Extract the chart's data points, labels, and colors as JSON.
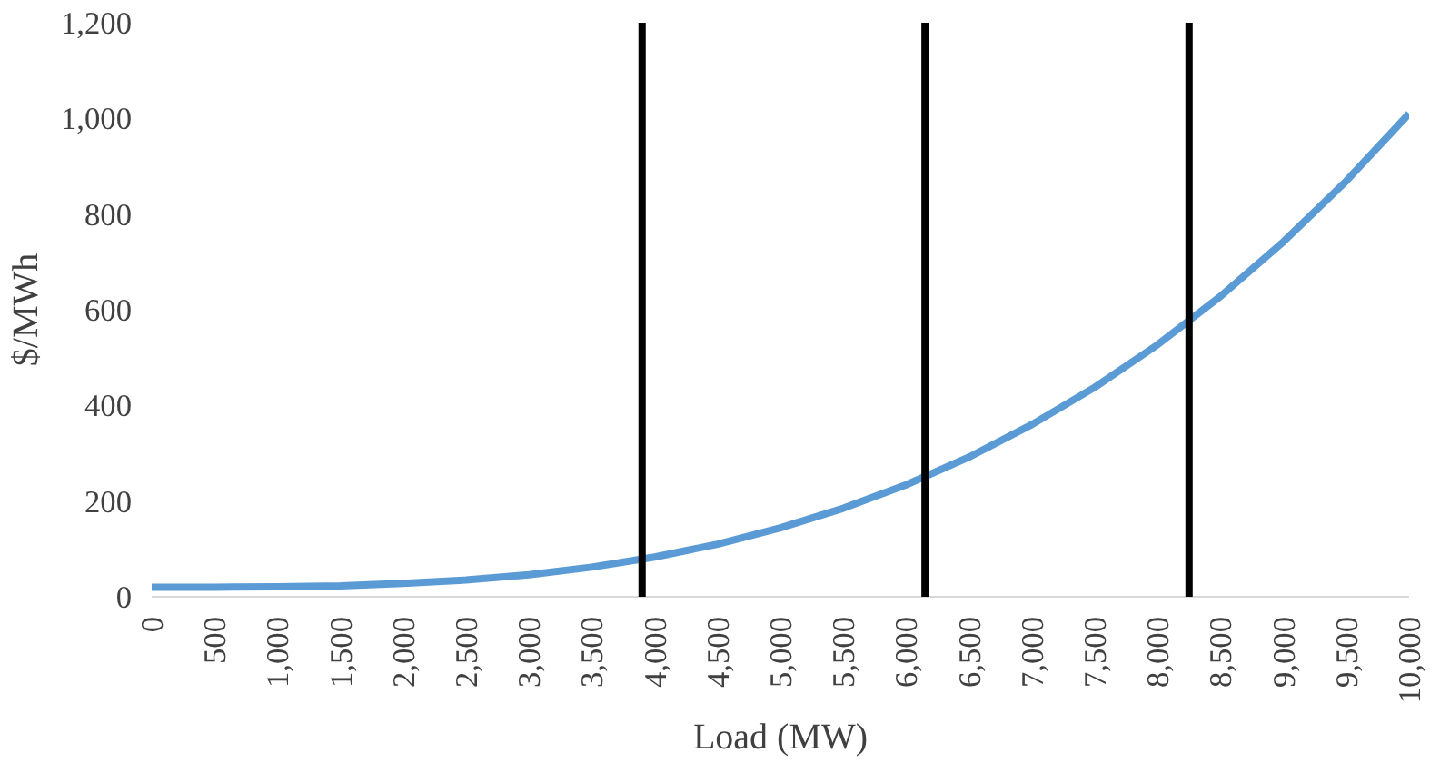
{
  "chart_data": {
    "type": "line",
    "xlabel": "Load (MW)",
    "ylabel": "$/MWh",
    "x": [
      0,
      500,
      1000,
      1500,
      2000,
      2500,
      3000,
      3500,
      4000,
      4500,
      5000,
      5500,
      6000,
      6500,
      7000,
      7500,
      8000,
      8500,
      9000,
      9500,
      10000
    ],
    "series": [
      {
        "color": "#5b9bd5",
        "values": [
          20,
          20,
          21,
          23,
          28,
          35,
          46,
          62,
          83,
          110,
          144,
          185,
          234,
          292,
          360,
          438,
          527,
          628,
          742,
          869,
          1010
        ]
      }
    ],
    "xlim": [
      0,
      10000
    ],
    "xticks": [
      0,
      {
        "value": 500,
        "label": "500"
      },
      {
        "value": 1000,
        "label": "1,000"
      },
      {
        "value": 1500,
        "label": "1,500"
      },
      {
        "value": 2000,
        "label": "2,000"
      },
      {
        "value": 2500,
        "label": "2,500"
      },
      {
        "value": 3000,
        "label": "3,000"
      },
      {
        "value": 3500,
        "label": "3,500"
      },
      {
        "value": 4000,
        "label": "4,000"
      },
      {
        "value": 4500,
        "label": "4,500"
      },
      {
        "value": 5000,
        "label": "5,000"
      },
      {
        "value": 5500,
        "label": "5,500"
      },
      {
        "value": 6000,
        "label": "6,000"
      },
      {
        "value": 6500,
        "label": "6,500"
      },
      {
        "value": 7000,
        "label": "7,000"
      },
      {
        "value": 7500,
        "label": "7,500"
      },
      {
        "value": 8000,
        "label": "8,000"
      },
      {
        "value": 8500,
        "label": "8,500"
      },
      {
        "value": 9000,
        "label": "9,000"
      },
      {
        "value": 9500,
        "label": "9,500"
      },
      {
        "value": 10000,
        "label": "10,000"
      }
    ],
    "ylim": [
      0,
      1200
    ],
    "yticks": [
      0,
      200,
      400,
      600,
      800,
      {
        "value": 1000,
        "label": "1,000"
      },
      {
        "value": 1200,
        "label": "1,200"
      }
    ],
    "ref_lines": [
      {
        "axis": "x",
        "value": 3900,
        "color": "#000000"
      },
      {
        "axis": "x",
        "value": 6150,
        "color": "#000000"
      },
      {
        "axis": "x",
        "value": 8250,
        "color": "#000000"
      }
    ],
    "grid": false,
    "marker": "none",
    "line_style": "solid"
  }
}
